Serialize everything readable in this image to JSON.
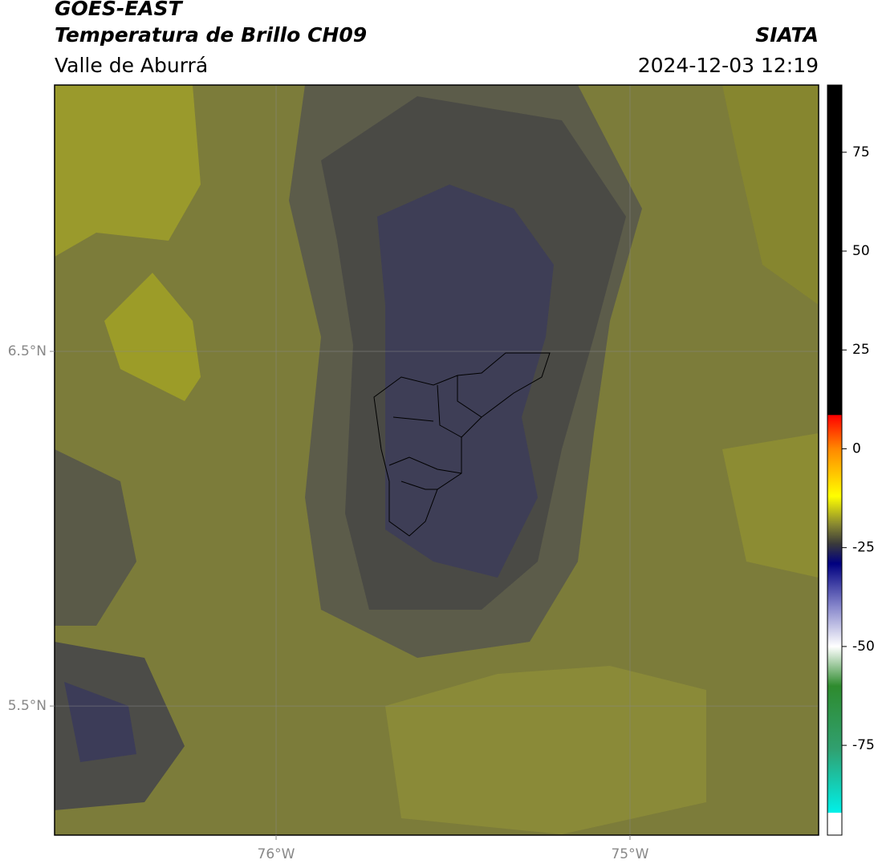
{
  "header": {
    "title": "GOES-EAST",
    "subtitle": "Temperatura de Brillo CH09",
    "region": "Valle de Aburrá",
    "source": "SIATA",
    "timestamp": "2024-12-03 12:19"
  },
  "map": {
    "xlim": [
      -76.626,
      -74.467
    ],
    "ylim": [
      5.136,
      7.251
    ],
    "xticks": [
      {
        "value": -76,
        "label": "76°W"
      },
      {
        "value": -75,
        "label": "75°W"
      }
    ],
    "yticks": [
      {
        "value": 6.5,
        "label": "6.5°N"
      },
      {
        "value": 5.5,
        "label": "5.5°N"
      }
    ],
    "grid": true
  },
  "colorbar": {
    "lim": [
      -97.7,
      92
    ],
    "ticks": [
      75,
      50,
      25,
      0,
      -25,
      -50,
      -75
    ],
    "stops": [
      {
        "value": 92,
        "color": "#000000"
      },
      {
        "value": 8.6,
        "color": "#000000"
      },
      {
        "value": 8.5,
        "color": "#ff0000"
      },
      {
        "value": 0,
        "color": "#ff8800"
      },
      {
        "value": -12,
        "color": "#ffff00"
      },
      {
        "value": -19,
        "color": "#8a8a30"
      },
      {
        "value": -24,
        "color": "#3a3a3a"
      },
      {
        "value": -29,
        "color": "#000080"
      },
      {
        "value": -40,
        "color": "#8888cc"
      },
      {
        "value": -50,
        "color": "#ffffff"
      },
      {
        "value": -60,
        "color": "#2e8b2e"
      },
      {
        "value": -76,
        "color": "#30a070"
      },
      {
        "value": -92,
        "color": "#00f0e8"
      },
      {
        "value": -92.1,
        "color": "#ffffff"
      },
      {
        "value": -97.7,
        "color": "#ffffff"
      }
    ]
  }
}
